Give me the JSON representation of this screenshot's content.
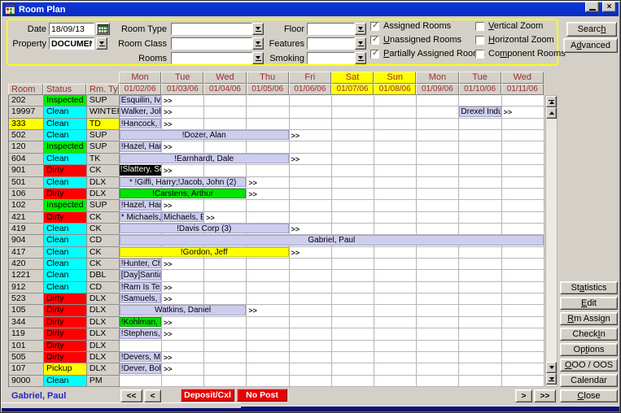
{
  "window": {
    "title": "Room Plan"
  },
  "filters": {
    "date_label": "Date",
    "date_value": "18/09/13",
    "property_label": "Property",
    "property_value": "DOCUMENT",
    "room_type_label": "Room Type",
    "room_class_label": "Room Class",
    "rooms_label": "Rooms",
    "floor_label": "Floor",
    "features_label": "Features",
    "smoking_label": "Smoking",
    "checkboxes": [
      {
        "label": "Assigned Rooms",
        "checked": true,
        "mnemonic": null
      },
      {
        "label": "Unassigned Rooms",
        "checked": true,
        "mnemonic": 0
      },
      {
        "label": "Partially Assigned Rooms",
        "checked": true,
        "mnemonic": 0
      },
      {
        "label": "Vertical Zoom",
        "checked": false,
        "mnemonic": 0
      },
      {
        "label": "Horizontal Zoom",
        "checked": false,
        "mnemonic": 0
      },
      {
        "label": "Component Rooms",
        "checked": false,
        "mnemonic": 2
      }
    ],
    "search_label": "Search",
    "search_mnemonic": 5,
    "advanced_label": "Advanced",
    "advanced_mnemonic": 1
  },
  "grid": {
    "corner": [
      "Room",
      "Status",
      "Rm. Type"
    ],
    "continue_marker": ">>",
    "days": [
      {
        "day": "Mon",
        "date": "01/02/06",
        "weekend": false
      },
      {
        "day": "Tue",
        "date": "01/03/06",
        "weekend": false
      },
      {
        "day": "Wed",
        "date": "01/04/06",
        "weekend": false
      },
      {
        "day": "Thu",
        "date": "01/05/06",
        "weekend": false
      },
      {
        "day": "Fri",
        "date": "01/06/06",
        "weekend": false
      },
      {
        "day": "Sat",
        "date": "01/07/06",
        "weekend": true
      },
      {
        "day": "Sun",
        "date": "01/08/06",
        "weekend": true
      },
      {
        "day": "Mon",
        "date": "01/09/06",
        "weekend": false
      },
      {
        "day": "Tue",
        "date": "01/10/06",
        "weekend": false
      },
      {
        "day": "Wed",
        "date": "01/11/06",
        "weekend": false
      }
    ],
    "status_colors": {
      "Inspected": "#00ee00",
      "Clean": "#00ffff",
      "Dirty": "#ff0000",
      "Pickup": "#ffff00"
    },
    "rows": [
      {
        "room": "202",
        "status": "Inspected",
        "type": "SUP",
        "bookings": [
          {
            "col": 0,
            "span": 1,
            "text": "Esquilin, Ivo",
            "style": "lavender",
            "arrow": true
          }
        ]
      },
      {
        "room": "19997",
        "status": "Clean",
        "type": "WINTER",
        "bookings": [
          {
            "col": 0,
            "span": 1,
            "text": "Walker, John",
            "style": "lavender",
            "arrow": true
          },
          {
            "col": 8,
            "span": 1,
            "text": "Drexel Indus",
            "style": "lavender",
            "arrow": true
          }
        ]
      },
      {
        "room": "333",
        "status": "Clean",
        "type": "TD",
        "room_bg": "#ffff00",
        "type_bg": "#ffff00",
        "bookings": [
          {
            "col": 0,
            "span": 1,
            "text": "!Hancock, He",
            "style": "lavender",
            "arrow": true
          }
        ]
      },
      {
        "room": "502",
        "status": "Clean",
        "type": "SUP",
        "bookings": [
          {
            "col": 0,
            "span": 4,
            "text": "!Dozer, Alan",
            "style": "lavender",
            "arrow": true
          }
        ]
      },
      {
        "room": "120",
        "status": "Inspected",
        "type": "SUP",
        "bookings": [
          {
            "col": 0,
            "span": 1,
            "text": "!Hazel, Harr",
            "style": "lavender",
            "arrow": true
          }
        ]
      },
      {
        "room": "604",
        "status": "Clean",
        "type": "TK",
        "bookings": [
          {
            "col": 0,
            "span": 4,
            "text": "!Earnhardt, Dale",
            "style": "lavender",
            "arrow": true
          }
        ]
      },
      {
        "room": "901",
        "status": "Dirty",
        "type": "CK",
        "bookings": [
          {
            "col": 0,
            "span": 1,
            "text": "!Slattery, Sea",
            "style": "black",
            "arrow": true
          }
        ]
      },
      {
        "room": "501",
        "status": "Clean",
        "type": "DLX",
        "bookings": [
          {
            "col": 0,
            "span": 3,
            "text": "* !Giffi, Harry;!Jacob, John (2)",
            "style": "lavender",
            "arrow": true
          }
        ]
      },
      {
        "room": "106",
        "status": "Dirty",
        "type": "DLX",
        "bookings": [
          {
            "col": 0,
            "span": 3,
            "text": "!Carstens, Arthur",
            "style": "green",
            "arrow": true
          }
        ]
      },
      {
        "room": "102",
        "status": "Inspected",
        "type": "SUP",
        "bookings": [
          {
            "col": 0,
            "span": 1,
            "text": "!Hazel, Harri",
            "style": "lavender",
            "arrow": true
          }
        ]
      },
      {
        "room": "421",
        "status": "Dirty",
        "type": "CK",
        "bookings": [
          {
            "col": 0,
            "span": 1,
            "text": "* Michaels, E",
            "style": "lavender",
            "arrow": false
          },
          {
            "col": 1,
            "span": 1,
            "text": "Michaels, Ed",
            "style": "lavender",
            "arrow": true
          }
        ]
      },
      {
        "room": "419",
        "status": "Clean",
        "type": "CK",
        "bookings": [
          {
            "col": 0,
            "span": 4,
            "text": "!Davis Corp (3)",
            "style": "lavender",
            "arrow": true
          }
        ]
      },
      {
        "room": "904",
        "status": "Clean",
        "type": "CD",
        "bookings": [
          {
            "col": 0,
            "span": 10,
            "text": "Gabriel, Paul",
            "style": "lavender",
            "arrow": false
          }
        ]
      },
      {
        "room": "417",
        "status": "Clean",
        "type": "CK",
        "bookings": [
          {
            "col": 0,
            "span": 4,
            "text": "!Gordon, Jeff",
            "style": "yellow",
            "arrow": true
          }
        ]
      },
      {
        "room": "420",
        "status": "Clean",
        "type": "CK",
        "bookings": [
          {
            "col": 0,
            "span": 1,
            "text": "!Hunter, Cha",
            "style": "lavender",
            "arrow": true
          }
        ]
      },
      {
        "room": "1221",
        "status": "Clean",
        "type": "DBL",
        "bookings": [
          {
            "col": 0,
            "span": 1,
            "text": "[Day]Santiag",
            "style": "lavender",
            "arrow": false
          }
        ]
      },
      {
        "room": "912",
        "status": "Clean",
        "type": "CD",
        "bookings": [
          {
            "col": 0,
            "span": 1,
            "text": "!Ram Is Tes",
            "style": "lavender",
            "arrow": true
          }
        ]
      },
      {
        "room": "523",
        "status": "Dirty",
        "type": "DLX",
        "bookings": [
          {
            "col": 0,
            "span": 1,
            "text": "!Samuels, P",
            "style": "lavender",
            "arrow": true
          }
        ]
      },
      {
        "room": "105",
        "status": "Dirty",
        "type": "DLX",
        "bookings": [
          {
            "col": 0,
            "span": 3,
            "text": "Watkins, Daniel",
            "style": "lavender",
            "arrow": true
          }
        ]
      },
      {
        "room": "344",
        "status": "Dirty",
        "type": "DLX",
        "bookings": [
          {
            "col": 0,
            "span": 1,
            "text": "!Kohlman, Jo",
            "style": "green",
            "arrow": true
          }
        ]
      },
      {
        "room": "119",
        "status": "Dirty",
        "type": "DLX",
        "bookings": [
          {
            "col": 0,
            "span": 1,
            "text": "!Stephens, R",
            "style": "lavender",
            "arrow": true
          }
        ]
      },
      {
        "room": "101",
        "status": "Dirty",
        "type": "DLX",
        "bookings": []
      },
      {
        "room": "505",
        "status": "Dirty",
        "type": "DLX",
        "bookings": [
          {
            "col": 0,
            "span": 1,
            "text": "!Devers, Mar",
            "style": "lavender",
            "arrow": true
          }
        ]
      },
      {
        "room": "107",
        "status": "Pickup",
        "type": "DLX",
        "bookings": [
          {
            "col": 0,
            "span": 1,
            "text": "!Dever, Bob",
            "style": "lavender",
            "arrow": true
          }
        ]
      },
      {
        "room": "9000",
        "status": "Clean",
        "type": "PM",
        "bookings": []
      }
    ]
  },
  "side_buttons": [
    {
      "label": "Statistics",
      "mnemonic": 2
    },
    {
      "label": "Edit",
      "mnemonic": 0
    },
    {
      "label": "Rm Assign",
      "mnemonic": 0
    },
    {
      "label": "Check In",
      "mnemonic": 6
    },
    {
      "label": "Options",
      "mnemonic": 2
    },
    {
      "label": "OOO / OOS",
      "mnemonic": 0
    },
    {
      "label": "Calendar",
      "mnemonic": null
    },
    {
      "label": "Close",
      "mnemonic": 0
    }
  ],
  "footer": {
    "selected_guest": "Gabriel, Paul",
    "page_first": "<<",
    "page_prev": "<",
    "deposit_label": "Deposit/Cxl",
    "no_post_label": "No Post",
    "page_next": ">",
    "page_last": ">>"
  }
}
